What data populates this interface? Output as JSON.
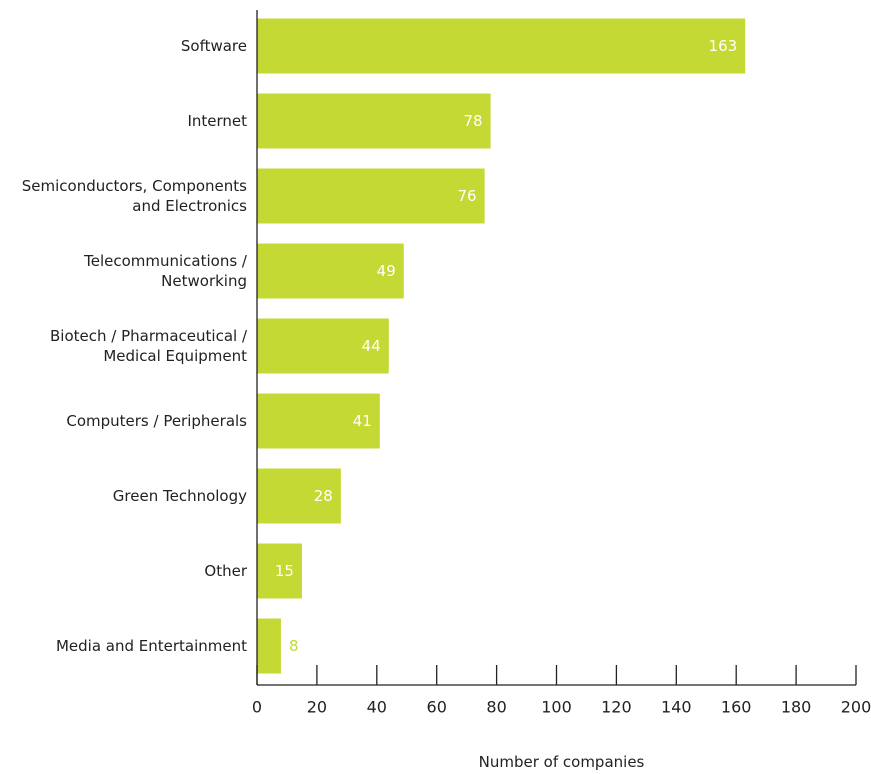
{
  "colors": {
    "bar": "#c4d934",
    "axis": "#222222",
    "label_inside": "#ffffff",
    "label_outside": "#c4d934"
  },
  "chart_data": {
    "type": "bar",
    "orientation": "horizontal",
    "categories": [
      [
        "Software"
      ],
      [
        "Internet"
      ],
      [
        "Semiconductors, Components",
        "and Electronics"
      ],
      [
        "Telecommunications /",
        "Networking"
      ],
      [
        "Biotech / Pharmaceutical /",
        "Medical Equipment"
      ],
      [
        "Computers / Peripherals"
      ],
      [
        "Green Technology"
      ],
      [
        "Other"
      ],
      [
        "Media and Entertainment"
      ]
    ],
    "values": [
      163,
      78,
      76,
      49,
      44,
      41,
      28,
      15,
      8
    ],
    "xlim": [
      0,
      200
    ],
    "xticks": [
      0,
      20,
      40,
      60,
      80,
      100,
      120,
      140,
      160,
      180,
      200
    ],
    "xlabel": "Number of companies",
    "ylabel": "",
    "title": "",
    "grid": false,
    "legend": "none"
  }
}
